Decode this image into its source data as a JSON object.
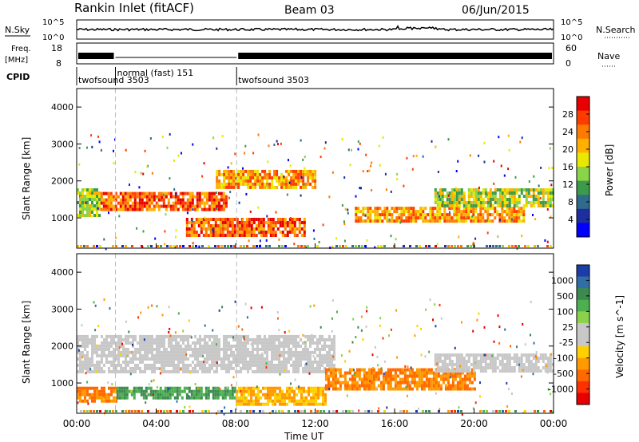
{
  "header": {
    "station": "Rankin Inlet (fitACF)",
    "beam": "Beam 03",
    "date": "06/Jun/2015"
  },
  "aux": {
    "nsky_label": "N.Sky",
    "nsky_ticks": [
      "10^5",
      "10^0"
    ],
    "nsearch_label": "N.Search",
    "nsearch_ticks": [
      "10^5",
      "10^0"
    ],
    "freq_label": "Freq.",
    "freq_unit": "[MHz]",
    "freq_ticks": [
      "18",
      "8"
    ],
    "nave_label": "Nave",
    "nave_ticks": [
      "60",
      "0"
    ],
    "cpid_label": "CPID",
    "cpid_entries": [
      {
        "label": "twofsound 3503",
        "start_hour": 0.0,
        "end_hour": 1.95
      },
      {
        "label": "normal (fast) 151",
        "start_hour": 1.95,
        "end_hour": 8.05
      },
      {
        "label": "twofsound 3503",
        "start_hour": 8.05,
        "end_hour": 24.0
      }
    ]
  },
  "axes": {
    "x_label": "Time UT",
    "x_ticks": [
      "00:00",
      "04:00",
      "08:00",
      "12:00",
      "16:00",
      "20:00",
      "00:00"
    ],
    "y_label": "Slant Range [km]",
    "y_ticks": [
      "1000",
      "2000",
      "3000",
      "4000"
    ]
  },
  "colorbars": {
    "power": {
      "title": "Power [dB]",
      "labels": [
        "28",
        "24",
        "20",
        "16",
        "12",
        "8",
        "4"
      ],
      "colors": [
        "#e80000",
        "#ff3c00",
        "#ff7a00",
        "#ffb000",
        "#e8e800",
        "#8ad44a",
        "#3c9b4a",
        "#2f6b8c",
        "#1e2ea0",
        "#0000ff"
      ]
    },
    "velocity": {
      "title": "Velocity [m s^-1]",
      "labels": [
        "1000",
        "500",
        "100",
        "25",
        "-25",
        "-100",
        "-500",
        "-1000"
      ],
      "colors": [
        "#1c3da8",
        "#2f6fa6",
        "#3c8a4e",
        "#4caf50",
        "#8bd24a",
        "#c8c8c8",
        "#c8c8c8",
        "#ffd000",
        "#ff9a00",
        "#ff6a00",
        "#ff3000",
        "#e80000"
      ]
    }
  },
  "chart_data": {
    "type": "heatmap",
    "x_range_hours": [
      0,
      24
    ],
    "y_range_km": [
      180,
      4500
    ],
    "power_panel": {
      "regions": [
        {
          "t0": 0.0,
          "t1": 1.2,
          "r0": 1100,
          "r1": 1800,
          "level": "12-20 dB"
        },
        {
          "t0": 1.2,
          "t1": 7.5,
          "r0": 1200,
          "r1": 1700,
          "level": "20-28 dB"
        },
        {
          "t0": 5.5,
          "t1": 11.5,
          "r0": 500,
          "r1": 1000,
          "level": "20-28 dB"
        },
        {
          "t0": 7.0,
          "t1": 12.0,
          "r0": 1800,
          "r1": 2300,
          "level": "16-24 dB"
        },
        {
          "t0": 14.0,
          "t1": 22.5,
          "r0": 900,
          "r1": 1300,
          "level": "16-24 dB"
        },
        {
          "t0": 18.0,
          "t1": 24.0,
          "r0": 1300,
          "r1": 1800,
          "level": "12-20 dB"
        }
      ]
    },
    "velocity_panel": {
      "regions": [
        {
          "t0": 0.0,
          "t1": 13.0,
          "r0": 1300,
          "r1": 2300,
          "level": "-25..25"
        },
        {
          "t0": 0.0,
          "t1": 2.0,
          "r0": 500,
          "r1": 900,
          "level": "-100..-500"
        },
        {
          "t0": 2.0,
          "t1": 8.0,
          "r0": 600,
          "r1": 900,
          "level": "100..500"
        },
        {
          "t0": 8.0,
          "t1": 12.5,
          "r0": 400,
          "r1": 900,
          "level": "-25..-100"
        },
        {
          "t0": 12.5,
          "t1": 20.0,
          "r0": 800,
          "r1": 1400,
          "level": "-100..-500"
        },
        {
          "t0": 18.0,
          "t1": 24.0,
          "r0": 1300,
          "r1": 1800,
          "level": "-25..25"
        }
      ]
    }
  }
}
